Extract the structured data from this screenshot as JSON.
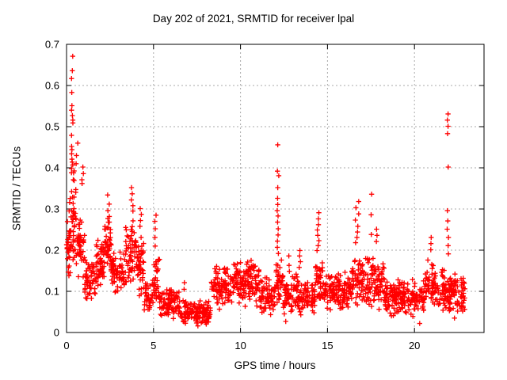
{
  "chart_data": {
    "type": "scatter",
    "title": "Day 202 of 2021, SRMTID for receiver lpal",
    "xlabel": "GPS time / hours",
    "ylabel": "SRMTID / TECUs",
    "xlim": [
      0,
      24
    ],
    "ylim": [
      0,
      0.7
    ],
    "xtick_values": [
      0,
      5,
      10,
      15,
      20
    ],
    "xtick_labels": [
      "0",
      "5",
      "10",
      "15",
      "20"
    ],
    "ytick_values": [
      0,
      0.1,
      0.2,
      0.3,
      0.4,
      0.5,
      0.6,
      0.7
    ],
    "ytick_labels": [
      "0",
      "0.1",
      "0.2",
      "0.3",
      "0.4",
      "0.5",
      "0.6",
      "0.7"
    ],
    "grid": true,
    "legend_position": "none",
    "colors": {
      "marker": "#ff0000",
      "grid": "#aaaaaa",
      "border": "#000000",
      "text": "#000000",
      "background": "#ffffff"
    },
    "series": [
      {
        "name": "SRMTID",
        "marker": "plus",
        "color": "#ff0000",
        "seed": 20210202,
        "baseline_segments": [
          [
            0.0,
            0.25,
            38,
            0.1,
            0.33
          ],
          [
            0.25,
            0.55,
            40,
            0.15,
            0.4
          ],
          [
            0.55,
            1.05,
            48,
            0.12,
            0.3
          ],
          [
            1.05,
            1.7,
            55,
            0.07,
            0.18
          ],
          [
            1.7,
            2.15,
            45,
            0.1,
            0.23
          ],
          [
            2.15,
            2.6,
            48,
            0.11,
            0.3
          ],
          [
            2.6,
            3.35,
            60,
            0.08,
            0.2
          ],
          [
            3.35,
            4.0,
            58,
            0.1,
            0.29
          ],
          [
            4.0,
            4.45,
            45,
            0.08,
            0.24
          ],
          [
            4.45,
            5.0,
            38,
            0.04,
            0.14
          ],
          [
            5.0,
            5.35,
            32,
            0.06,
            0.2
          ],
          [
            5.35,
            6.5,
            85,
            0.03,
            0.12
          ],
          [
            6.5,
            8.3,
            135,
            0.018,
            0.08
          ],
          [
            8.3,
            9.4,
            85,
            0.05,
            0.17
          ],
          [
            9.4,
            11.1,
            140,
            0.06,
            0.18
          ],
          [
            11.1,
            12.0,
            70,
            0.04,
            0.14
          ],
          [
            12.0,
            12.45,
            35,
            0.07,
            0.18
          ],
          [
            12.45,
            13.35,
            70,
            0.04,
            0.15
          ],
          [
            13.35,
            14.3,
            70,
            0.04,
            0.13
          ],
          [
            14.3,
            14.75,
            38,
            0.07,
            0.19
          ],
          [
            14.75,
            16.4,
            130,
            0.05,
            0.15
          ],
          [
            16.4,
            17.05,
            55,
            0.06,
            0.21
          ],
          [
            17.05,
            18.3,
            95,
            0.05,
            0.19
          ],
          [
            18.3,
            20.6,
            175,
            0.035,
            0.13
          ],
          [
            20.6,
            21.35,
            60,
            0.055,
            0.19
          ],
          [
            21.35,
            21.95,
            48,
            0.05,
            0.16
          ],
          [
            21.95,
            22.9,
            85,
            0.04,
            0.15
          ]
        ],
        "spikes": [
          {
            "t": 0.33,
            "jitter": 0.1,
            "values": [
              0.671,
              0.636,
              0.617,
              0.583,
              0.551,
              0.54,
              0.527,
              0.516,
              0.509,
              0.479,
              0.452,
              0.444,
              0.434,
              0.421,
              0.414,
              0.407,
              0.398,
              0.388
            ]
          },
          {
            "t": 0.62,
            "jitter": 0.18,
            "values": [
              0.46,
              0.43,
              0.41
            ]
          },
          {
            "t": 0.92,
            "jitter": 0.12,
            "values": [
              0.402,
              0.386,
              0.371,
              0.362
            ]
          },
          {
            "t": 2.4,
            "jitter": 0.14,
            "values": [
              0.334,
              0.312,
              0.296,
              0.282,
              0.268,
              0.254
            ]
          },
          {
            "t": 3.78,
            "jitter": 0.12,
            "values": [
              0.352,
              0.337,
              0.322,
              0.308,
              0.295
            ]
          },
          {
            "t": 4.25,
            "jitter": 0.12,
            "values": [
              0.301,
              0.287,
              0.272,
              0.258
            ]
          },
          {
            "t": 5.1,
            "jitter": 0.14,
            "values": [
              0.285,
              0.27,
              0.252,
              0.231,
              0.21
            ]
          },
          {
            "t": 6.8,
            "jitter": 0.15,
            "values": [
              0.121,
              0.105
            ]
          },
          {
            "t": 12.15,
            "jitter": 0.1,
            "values": [
              0.456,
              0.392,
              0.381,
              0.352,
              0.326,
              0.311,
              0.296,
              0.283,
              0.268,
              0.252,
              0.237,
              0.222,
              0.207,
              0.192
            ]
          },
          {
            "t": 12.78,
            "jitter": 0.1,
            "values": [
              0.186,
              0.163
            ]
          },
          {
            "t": 13.42,
            "jitter": 0.12,
            "values": [
              0.199,
              0.186,
              0.172,
              0.158
            ]
          },
          {
            "t": 14.45,
            "jitter": 0.12,
            "values": [
              0.291,
              0.276,
              0.262,
              0.249,
              0.236,
              0.223,
              0.211,
              0.199
            ]
          },
          {
            "t": 16.7,
            "jitter": 0.2,
            "values": [
              0.318,
              0.303,
              0.288,
              0.273,
              0.258,
              0.244,
              0.231,
              0.218
            ]
          },
          {
            "t": 17.5,
            "jitter": 0.08,
            "values": [
              0.336,
              0.286,
              0.238
            ]
          },
          {
            "t": 17.85,
            "jitter": 0.16,
            "values": [
              0.251,
              0.236,
              0.221
            ]
          },
          {
            "t": 20.95,
            "jitter": 0.12,
            "values": [
              0.231,
              0.216,
              0.201
            ]
          },
          {
            "t": 21.92,
            "jitter": 0.08,
            "values": [
              0.531,
              0.516,
              0.501,
              0.483,
              0.402,
              0.296,
              0.271,
              0.251,
              0.231,
              0.211,
              0.191
            ]
          }
        ],
        "outliers": [
          [
            7.55,
            0.016
          ],
          [
            12.6,
            0.027
          ],
          [
            20.3,
            0.022
          ],
          [
            22.3,
            0.035
          ]
        ]
      }
    ]
  }
}
